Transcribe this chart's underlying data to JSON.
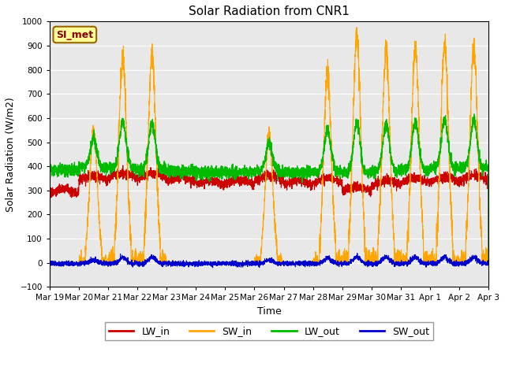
{
  "title": "Solar Radiation from CNR1",
  "xlabel": "Time",
  "ylabel": "Solar Radiation (W/m2)",
  "ylim": [
    -100,
    1000
  ],
  "yticks": [
    -100,
    0,
    100,
    200,
    300,
    400,
    500,
    600,
    700,
    800,
    900,
    1000
  ],
  "x_tick_labels": [
    "Mar 19",
    "Mar 20",
    "Mar 21",
    "Mar 22",
    "Mar 23",
    "Mar 24",
    "Mar 25",
    "Mar 26",
    "Mar 27",
    "Mar 28",
    "Mar 29",
    "Mar 30",
    "Mar 31",
    "Apr 1",
    "Apr 2",
    "Apr 3"
  ],
  "n_days": 15,
  "colors": {
    "LW_in": "#cc0000",
    "SW_in": "#ffa500",
    "LW_out": "#00bb00",
    "SW_out": "#0000cc"
  },
  "legend_label": "SI_met",
  "plot_bg": "#e8e8e8",
  "fig_bg": "#ffffff",
  "sw_in_peaks": [
    0,
    550,
    860,
    855,
    0,
    0,
    0,
    530,
    0,
    770,
    940,
    875,
    895,
    905,
    885
  ],
  "lw_in_base": [
    285,
    340,
    350,
    350,
    335,
    320,
    325,
    340,
    320,
    330,
    295,
    320,
    330,
    335,
    340
  ],
  "lw_out_base": [
    385,
    395,
    395,
    390,
    380,
    375,
    375,
    380,
    375,
    380,
    375,
    380,
    385,
    395,
    395
  ]
}
